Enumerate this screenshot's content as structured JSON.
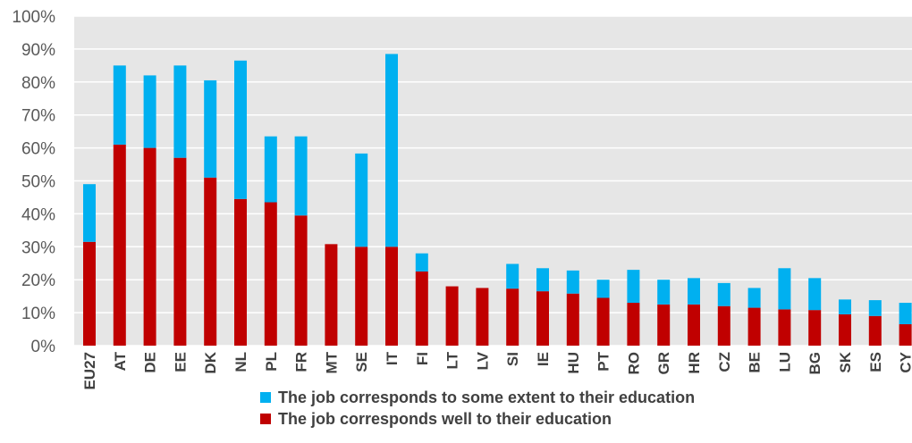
{
  "chart_data": {
    "type": "bar",
    "stacked": true,
    "categories": [
      "EU27",
      "AT",
      "DE",
      "EE",
      "DK",
      "NL",
      "PL",
      "FR",
      "MT",
      "SE",
      "IT",
      "FI",
      "LT",
      "LV",
      "SI",
      "IE",
      "HU",
      "PT",
      "RO",
      "GR",
      "HR",
      "CZ",
      "BE",
      "LU",
      "BG",
      "SK",
      "ES",
      "CY"
    ],
    "series": [
      {
        "name": "The job corresponds well to their education",
        "color": "#C00000",
        "values": [
          31.5,
          61,
          60,
          57,
          51,
          44.5,
          43.5,
          39.5,
          30.8,
          30,
          30,
          22.5,
          18,
          17.5,
          17.3,
          16.5,
          15.8,
          14.5,
          13,
          12.5,
          12.5,
          12,
          11.5,
          11,
          10.8,
          9.5,
          9,
          6.5
        ]
      },
      {
        "name": "The job corresponds to some extent to their education",
        "color": "#00B0F0",
        "values": [
          17.5,
          24,
          22,
          28,
          29.5,
          42,
          20,
          24,
          0,
          28.3,
          58.5,
          5.5,
          0,
          0,
          7.5,
          7,
          7,
          5.5,
          10,
          7.5,
          8,
          7,
          6,
          12.5,
          9.7,
          4.5,
          4.8,
          6.5
        ]
      }
    ],
    "y_ticks": [
      "0%",
      "10%",
      "20%",
      "30%",
      "40%",
      "50%",
      "60%",
      "70%",
      "80%",
      "90%",
      "100%"
    ],
    "ylim": [
      0,
      100
    ],
    "grid": true,
    "legend_position": "bottom",
    "legend_order": [
      1,
      0
    ],
    "background_color": "#E6E6E6",
    "gridline_color": "#FFFFFF"
  }
}
